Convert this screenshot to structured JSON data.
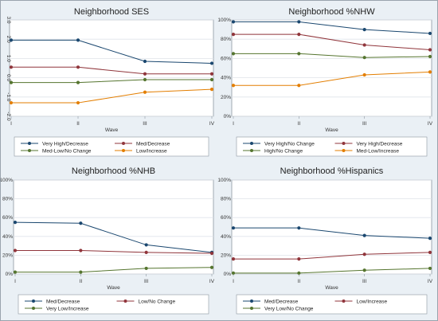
{
  "chart_data": [
    {
      "type": "line",
      "title": "Neighborhood  SES",
      "xlabel": "Wave",
      "categories": [
        "I",
        "II",
        "III",
        "IV"
      ],
      "ylim": [
        -2,
        3
      ],
      "yticks": [
        "-2.0",
        "-1.0",
        "0.0",
        "1.0",
        "2.0",
        "3.0"
      ],
      "ytick_values": [
        -2,
        -1,
        0,
        1,
        2,
        3
      ],
      "ytick_rotated": true,
      "grid": true,
      "legend_position": "bottom",
      "series": [
        {
          "name": "Very High/Decrease",
          "color": "#1a476f",
          "values": [
            1.95,
            1.95,
            0.85,
            0.75
          ]
        },
        {
          "name": "Med/Decrease",
          "color": "#90353b",
          "values": [
            0.55,
            0.55,
            0.2,
            0.2
          ]
        },
        {
          "name": "Med-Low/No Change",
          "color": "#55752f",
          "values": [
            -0.25,
            -0.25,
            -0.1,
            -0.1
          ]
        },
        {
          "name": "Low/Increase",
          "color": "#e37e00",
          "values": [
            -1.3,
            -1.3,
            -0.75,
            -0.6
          ]
        }
      ]
    },
    {
      "type": "line",
      "title": "Neighborhood  %NHW",
      "xlabel": "Wave",
      "categories": [
        "I",
        "II",
        "III",
        "IV"
      ],
      "ylim": [
        0,
        100
      ],
      "yticks": [
        "0%",
        "20%",
        "40%",
        "60%",
        "80%",
        "100%"
      ],
      "ytick_values": [
        0,
        20,
        40,
        60,
        80,
        100
      ],
      "ytick_rotated": false,
      "grid": true,
      "legend_position": "bottom",
      "series": [
        {
          "name": "Very High/No Change",
          "color": "#1a476f",
          "values": [
            98,
            98,
            90,
            86
          ]
        },
        {
          "name": "Very High/Decrease",
          "color": "#90353b",
          "values": [
            85,
            85,
            74,
            69
          ]
        },
        {
          "name": "High/No Change",
          "color": "#55752f",
          "values": [
            65,
            65,
            61,
            62
          ]
        },
        {
          "name": "Med-Low/Increase",
          "color": "#e37e00",
          "values": [
            32,
            32,
            43,
            46
          ]
        }
      ]
    },
    {
      "type": "line",
      "title": "Neighborhood  %NHB",
      "xlabel": "Wave",
      "categories": [
        "I",
        "II",
        "III",
        "IV"
      ],
      "ylim": [
        0,
        100
      ],
      "yticks": [
        "0%",
        "20%",
        "40%",
        "60%",
        "80%",
        "100%"
      ],
      "ytick_values": [
        0,
        20,
        40,
        60,
        80,
        100
      ],
      "ytick_rotated": false,
      "grid": true,
      "legend_position": "bottom",
      "series": [
        {
          "name": "Med/Decrease",
          "color": "#1a476f",
          "values": [
            55,
            54,
            31,
            23
          ]
        },
        {
          "name": "Low/No Change",
          "color": "#90353b",
          "values": [
            25,
            25,
            23,
            22
          ]
        },
        {
          "name": "Very Low/Increase",
          "color": "#55752f",
          "values": [
            2,
            2,
            6,
            7
          ]
        }
      ]
    },
    {
      "type": "line",
      "title": "Neighborhood  %Hispanics",
      "xlabel": "Wave",
      "categories": [
        "I",
        "II",
        "III",
        "IV"
      ],
      "ylim": [
        0,
        100
      ],
      "yticks": [
        "0%",
        "20%",
        "40%",
        "60%",
        "80%",
        "100%"
      ],
      "ytick_values": [
        0,
        20,
        40,
        60,
        80,
        100
      ],
      "ytick_rotated": false,
      "grid": true,
      "legend_position": "bottom",
      "series": [
        {
          "name": "Med/Decrease",
          "color": "#1a476f",
          "values": [
            49,
            49,
            41,
            38
          ]
        },
        {
          "name": "Low/Increase",
          "color": "#90353b",
          "values": [
            16,
            16,
            21,
            23
          ]
        },
        {
          "name": "Very Low/No Change",
          "color": "#55752f",
          "values": [
            1,
            1,
            4,
            6
          ]
        }
      ]
    }
  ]
}
